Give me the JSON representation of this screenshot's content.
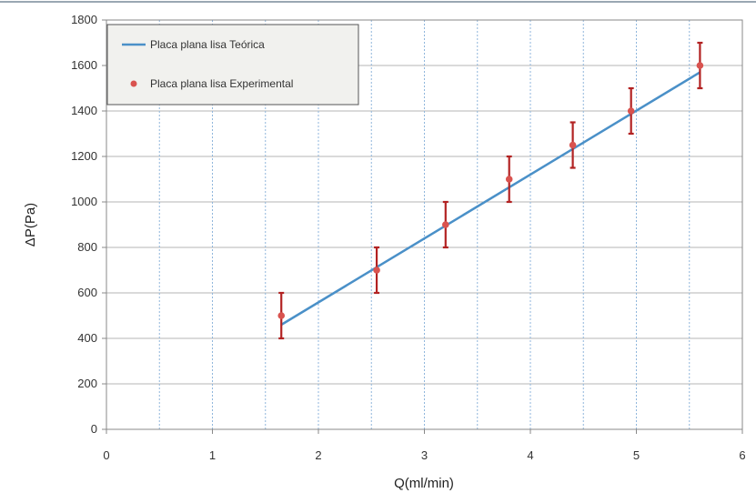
{
  "chart_data": {
    "type": "line",
    "xlabel": "Q(ml/min)",
    "ylabel": "ΔP(Pa)",
    "xlim": [
      0,
      6
    ],
    "ylim": [
      0,
      1800
    ],
    "x_ticks": [
      "0",
      "1",
      "2",
      "3",
      "4",
      "5",
      "6"
    ],
    "y_ticks": [
      "0",
      "200",
      "400",
      "600",
      "800",
      "1000",
      "1200",
      "1400",
      "1600",
      "1800"
    ],
    "grid": true,
    "legend_position": "top-left",
    "series": [
      {
        "name": "Placa plana lisa Teórica",
        "kind": "line",
        "color": "#4a90c8",
        "x": [
          1.65,
          5.6
        ],
        "y": [
          460,
          1570
        ]
      },
      {
        "name": "Placa plana lisa Experimental",
        "kind": "scatter",
        "color": "#d9534f",
        "error_color": "#b22222",
        "x": [
          1.65,
          2.55,
          3.2,
          3.8,
          4.4,
          4.95,
          5.6
        ],
        "y": [
          500,
          700,
          900,
          1100,
          1250,
          1400,
          1600
        ],
        "error": [
          100,
          100,
          100,
          100,
          100,
          100,
          100
        ]
      }
    ]
  }
}
